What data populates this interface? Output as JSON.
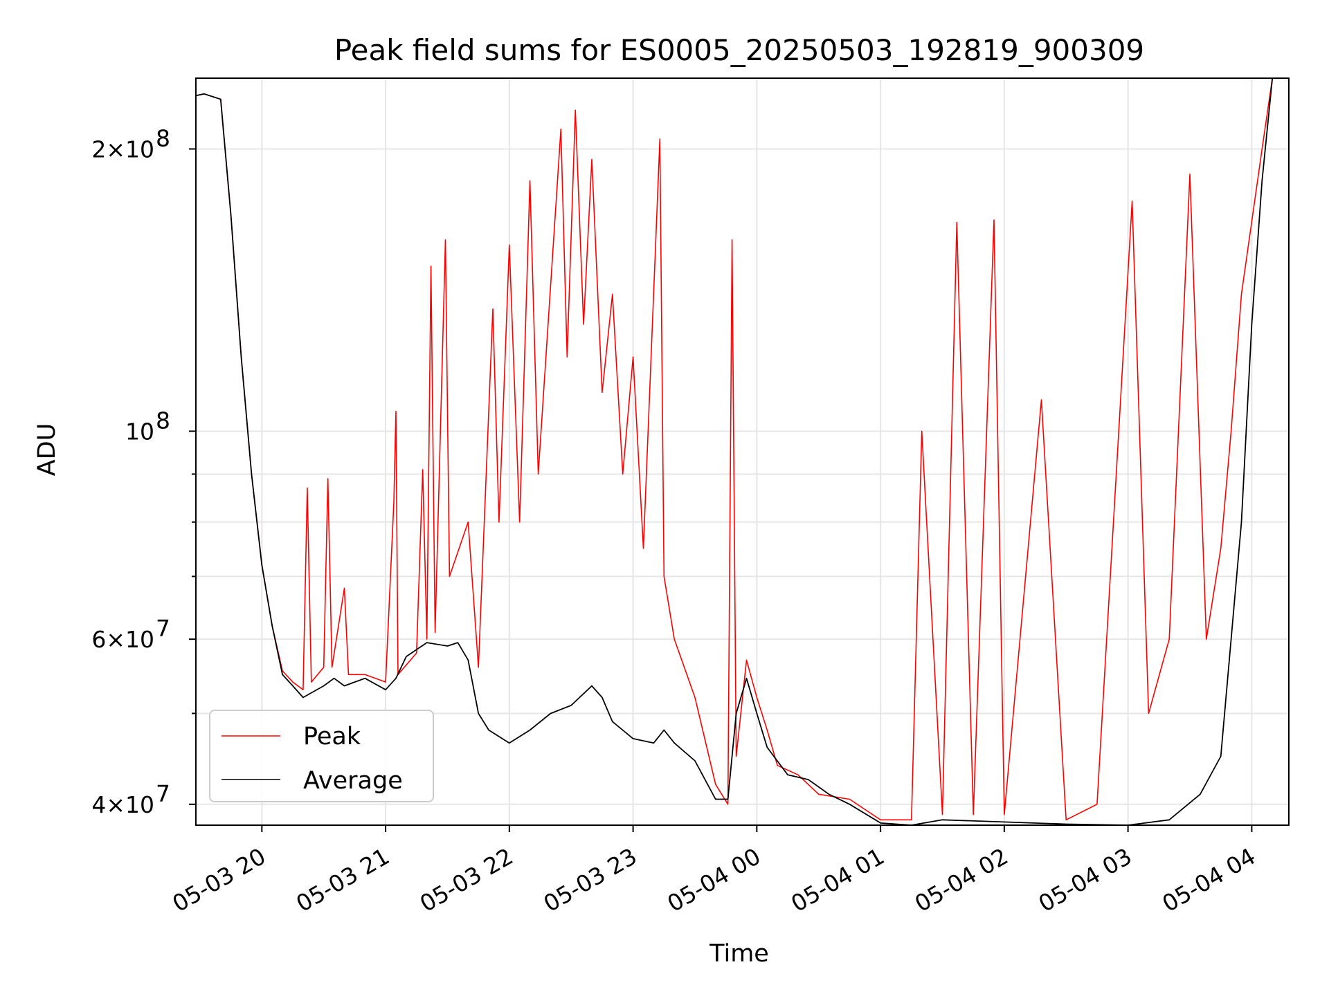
{
  "chart_data": {
    "type": "line",
    "title": "Peak field sums for ES0005_20250503_192819_900309",
    "xlabel": "Time",
    "ylabel": "ADU",
    "y_scale": "log",
    "grid": true,
    "legend_position": "lower-left",
    "xlim": [
      "2025-05-03 19:28",
      "2025-05-04 04:18"
    ],
    "ylim": [
      38000000,
      238000000
    ],
    "x_ticks": [
      {
        "value": "2025-05-03 20:00",
        "label": "05-03 20"
      },
      {
        "value": "2025-05-03 21:00",
        "label": "05-03 21"
      },
      {
        "value": "2025-05-03 22:00",
        "label": "05-03 22"
      },
      {
        "value": "2025-05-03 23:00",
        "label": "05-03 23"
      },
      {
        "value": "2025-05-04 00:00",
        "label": "05-04 00"
      },
      {
        "value": "2025-05-04 01:00",
        "label": "05-04 01"
      },
      {
        "value": "2025-05-04 02:00",
        "label": "05-04 02"
      },
      {
        "value": "2025-05-04 03:00",
        "label": "05-04 03"
      },
      {
        "value": "2025-05-04 04:00",
        "label": "05-04 04"
      }
    ],
    "y_ticks": [
      {
        "value": 40000000,
        "base": "4×10",
        "exp": "7"
      },
      {
        "value": 60000000,
        "base": "6×10",
        "exp": "7"
      },
      {
        "value": 100000000,
        "base": "10",
        "exp": "8"
      },
      {
        "value": 200000000,
        "base": "2×10",
        "exp": "8"
      }
    ],
    "y_minor_ticks": [
      50000000,
      70000000,
      80000000,
      90000000
    ],
    "series": [
      {
        "name": "Peak",
        "color": "#ff0000",
        "points": [
          [
            "2025-05-03 19:28",
            228000000
          ],
          [
            "2025-05-03 19:32",
            229000000
          ],
          [
            "2025-05-03 19:40",
            226000000
          ],
          [
            "2025-05-03 19:45",
            170000000
          ],
          [
            "2025-05-03 19:50",
            120000000
          ],
          [
            "2025-05-03 19:55",
            90000000
          ],
          [
            "2025-05-03 20:00",
            72000000
          ],
          [
            "2025-05-03 20:05",
            62000000
          ],
          [
            "2025-05-03 20:10",
            55500000
          ],
          [
            "2025-05-03 20:15",
            54000000
          ],
          [
            "2025-05-03 20:20",
            53000000
          ],
          [
            "2025-05-03 20:22",
            87000000
          ],
          [
            "2025-05-03 20:24",
            54000000
          ],
          [
            "2025-05-03 20:30",
            56000000
          ],
          [
            "2025-05-03 20:32",
            89000000
          ],
          [
            "2025-05-03 20:34",
            56000000
          ],
          [
            "2025-05-03 20:40",
            68000000
          ],
          [
            "2025-05-03 20:42",
            55000000
          ],
          [
            "2025-05-03 20:50",
            55000000
          ],
          [
            "2025-05-03 21:00",
            54000000
          ],
          [
            "2025-05-03 21:04",
            84000000
          ],
          [
            "2025-05-03 21:05",
            105000000
          ],
          [
            "2025-05-03 21:06",
            55000000
          ],
          [
            "2025-05-03 21:15",
            58000000
          ],
          [
            "2025-05-03 21:18",
            91000000
          ],
          [
            "2025-05-03 21:20",
            60000000
          ],
          [
            "2025-05-03 21:22",
            150000000
          ],
          [
            "2025-05-03 21:24",
            61000000
          ],
          [
            "2025-05-03 21:29",
            160000000
          ],
          [
            "2025-05-03 21:31",
            70000000
          ],
          [
            "2025-05-03 21:40",
            80000000
          ],
          [
            "2025-05-03 21:45",
            56000000
          ],
          [
            "2025-05-03 21:52",
            135000000
          ],
          [
            "2025-05-03 21:55",
            80000000
          ],
          [
            "2025-05-03 22:00",
            158000000
          ],
          [
            "2025-05-03 22:05",
            80000000
          ],
          [
            "2025-05-03 22:10",
            185000000
          ],
          [
            "2025-05-03 22:14",
            90000000
          ],
          [
            "2025-05-03 22:25",
            210000000
          ],
          [
            "2025-05-03 22:28",
            120000000
          ],
          [
            "2025-05-03 22:32",
            220000000
          ],
          [
            "2025-05-03 22:36",
            130000000
          ],
          [
            "2025-05-03 22:40",
            195000000
          ],
          [
            "2025-05-03 22:45",
            110000000
          ],
          [
            "2025-05-03 22:50",
            140000000
          ],
          [
            "2025-05-03 22:55",
            90000000
          ],
          [
            "2025-05-03 23:00",
            120000000
          ],
          [
            "2025-05-03 23:05",
            75000000
          ],
          [
            "2025-05-03 23:13",
            205000000
          ],
          [
            "2025-05-03 23:15",
            70000000
          ],
          [
            "2025-05-03 23:20",
            60000000
          ],
          [
            "2025-05-03 23:30",
            52000000
          ],
          [
            "2025-05-03 23:40",
            42000000
          ],
          [
            "2025-05-03 23:46",
            40000000
          ],
          [
            "2025-05-03 23:48",
            160000000
          ],
          [
            "2025-05-03 23:50",
            45000000
          ],
          [
            "2025-05-03 23:55",
            57000000
          ],
          [
            "2025-05-04 00:00",
            52000000
          ],
          [
            "2025-05-04 00:05",
            48000000
          ],
          [
            "2025-05-04 00:10",
            44000000
          ],
          [
            "2025-05-04 00:20",
            43000000
          ],
          [
            "2025-05-04 00:30",
            41000000
          ],
          [
            "2025-05-04 00:45",
            40500000
          ],
          [
            "2025-05-04 01:00",
            38500000
          ],
          [
            "2025-05-04 01:15",
            38500000
          ],
          [
            "2025-05-04 01:20",
            100000000
          ],
          [
            "2025-05-04 01:30",
            39000000
          ],
          [
            "2025-05-04 01:37",
            167000000
          ],
          [
            "2025-05-04 01:45",
            39000000
          ],
          [
            "2025-05-04 01:55",
            168000000
          ],
          [
            "2025-05-04 02:00",
            39000000
          ],
          [
            "2025-05-04 02:18",
            108000000
          ],
          [
            "2025-05-04 02:30",
            38500000
          ],
          [
            "2025-05-04 02:45",
            40000000
          ],
          [
            "2025-05-04 03:02",
            176000000
          ],
          [
            "2025-05-04 03:10",
            50000000
          ],
          [
            "2025-05-04 03:20",
            60000000
          ],
          [
            "2025-05-04 03:30",
            188000000
          ],
          [
            "2025-05-04 03:38",
            60000000
          ],
          [
            "2025-05-04 03:45",
            75000000
          ],
          [
            "2025-05-04 03:50",
            100000000
          ],
          [
            "2025-05-04 03:55",
            140000000
          ],
          [
            "2025-05-04 04:05",
            200000000
          ],
          [
            "2025-05-04 04:10",
            238000000
          ]
        ]
      },
      {
        "name": "Average",
        "color": "#000000",
        "points": [
          [
            "2025-05-03 19:28",
            228000000
          ],
          [
            "2025-05-03 19:32",
            229000000
          ],
          [
            "2025-05-03 19:40",
            226000000
          ],
          [
            "2025-05-03 19:45",
            170000000
          ],
          [
            "2025-05-03 19:50",
            120000000
          ],
          [
            "2025-05-03 19:55",
            90000000
          ],
          [
            "2025-05-03 20:00",
            72000000
          ],
          [
            "2025-05-03 20:05",
            62000000
          ],
          [
            "2025-05-03 20:10",
            55000000
          ],
          [
            "2025-05-03 20:15",
            53500000
          ],
          [
            "2025-05-03 20:20",
            52000000
          ],
          [
            "2025-05-03 20:30",
            53500000
          ],
          [
            "2025-05-03 20:35",
            54500000
          ],
          [
            "2025-05-03 20:40",
            53500000
          ],
          [
            "2025-05-03 20:50",
            54500000
          ],
          [
            "2025-05-03 21:00",
            53000000
          ],
          [
            "2025-05-03 21:05",
            54500000
          ],
          [
            "2025-05-03 21:10",
            57500000
          ],
          [
            "2025-05-03 21:20",
            59500000
          ],
          [
            "2025-05-03 21:30",
            59000000
          ],
          [
            "2025-05-03 21:35",
            59500000
          ],
          [
            "2025-05-03 21:40",
            57000000
          ],
          [
            "2025-05-03 21:45",
            50000000
          ],
          [
            "2025-05-03 21:50",
            48000000
          ],
          [
            "2025-05-03 22:00",
            46500000
          ],
          [
            "2025-05-03 22:10",
            48000000
          ],
          [
            "2025-05-03 22:20",
            50000000
          ],
          [
            "2025-05-03 22:30",
            51000000
          ],
          [
            "2025-05-03 22:40",
            53500000
          ],
          [
            "2025-05-03 22:45",
            52000000
          ],
          [
            "2025-05-03 22:50",
            49000000
          ],
          [
            "2025-05-03 23:00",
            47000000
          ],
          [
            "2025-05-03 23:10",
            46500000
          ],
          [
            "2025-05-03 23:15",
            48000000
          ],
          [
            "2025-05-03 23:20",
            46500000
          ],
          [
            "2025-05-03 23:30",
            44500000
          ],
          [
            "2025-05-03 23:40",
            40500000
          ],
          [
            "2025-05-03 23:46",
            40500000
          ],
          [
            "2025-05-03 23:50",
            50000000
          ],
          [
            "2025-05-03 23:55",
            54500000
          ],
          [
            "2025-05-04 00:00",
            50000000
          ],
          [
            "2025-05-04 00:05",
            46000000
          ],
          [
            "2025-05-04 00:15",
            43000000
          ],
          [
            "2025-05-04 00:25",
            42500000
          ],
          [
            "2025-05-04 00:35",
            41000000
          ],
          [
            "2025-05-04 00:45",
            40000000
          ],
          [
            "2025-05-04 01:00",
            38200000
          ],
          [
            "2025-05-04 01:15",
            38000000
          ],
          [
            "2025-05-04 01:30",
            38500000
          ],
          [
            "2025-05-04 02:00",
            38300000
          ],
          [
            "2025-05-04 02:30",
            38100000
          ],
          [
            "2025-05-04 03:00",
            38000000
          ],
          [
            "2025-05-04 03:20",
            38500000
          ],
          [
            "2025-05-04 03:35",
            41000000
          ],
          [
            "2025-05-04 03:45",
            45000000
          ],
          [
            "2025-05-04 03:55",
            80000000
          ],
          [
            "2025-05-04 04:00",
            130000000
          ],
          [
            "2025-05-04 04:05",
            185000000
          ],
          [
            "2025-05-04 04:10",
            238000000
          ]
        ]
      }
    ]
  }
}
